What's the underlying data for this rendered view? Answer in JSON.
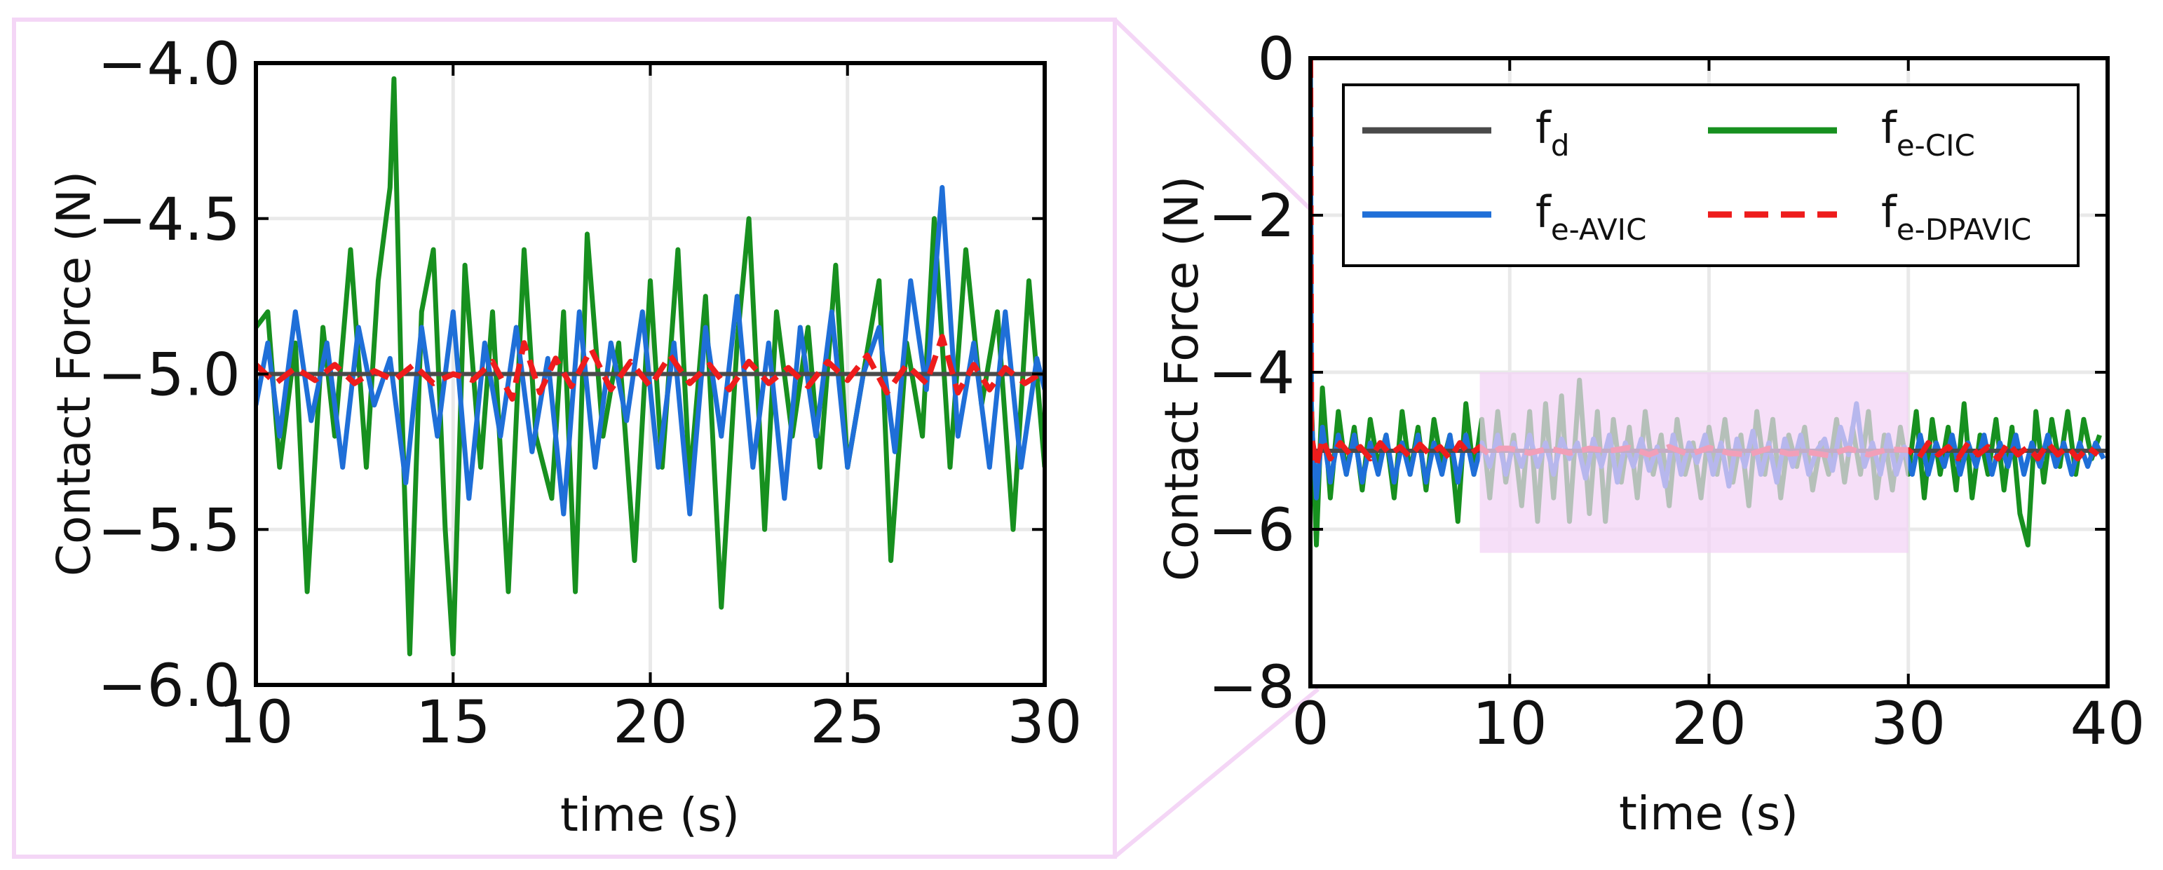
{
  "chart_data": [
    {
      "panel": "zoomed-view",
      "type": "line",
      "xlabel": "time (s)",
      "ylabel": "Contact Force (N)",
      "xlim": [
        10,
        30
      ],
      "ylim": [
        -6.0,
        -4.0
      ],
      "xticks": [
        "10",
        "15",
        "20",
        "25",
        "30"
      ],
      "yticks": [
        "−4.0",
        "−4.5",
        "−5.0",
        "−5.5",
        "−6.0"
      ],
      "grid": true,
      "series": [
        {
          "name": "f_d",
          "style": "solid",
          "color": "#4a4a4a",
          "t": [
            10,
            30
          ],
          "values": [
            -5.0,
            -5.0
          ]
        },
        {
          "name": "f_e-CIC",
          "style": "solid",
          "color": "#17901f",
          "t": [
            10.0,
            10.3,
            10.6,
            11.0,
            11.3,
            11.7,
            12.0,
            12.4,
            12.8,
            13.1,
            13.4,
            13.5,
            13.7,
            13.9,
            14.2,
            14.5,
            14.8,
            15.0,
            15.3,
            15.7,
            16.0,
            16.4,
            16.8,
            17.1,
            17.5,
            17.8,
            18.1,
            18.4,
            18.8,
            19.2,
            19.6,
            20.0,
            20.3,
            20.7,
            21.0,
            21.4,
            21.8,
            22.2,
            22.5,
            22.9,
            23.2,
            23.6,
            24.0,
            24.3,
            24.7,
            25.0,
            25.4,
            25.8,
            26.1,
            26.5,
            26.9,
            27.2,
            27.6,
            28.0,
            28.4,
            28.8,
            29.2,
            29.6,
            30.0
          ],
          "values": [
            -4.85,
            -4.8,
            -5.3,
            -4.9,
            -5.7,
            -4.85,
            -5.2,
            -4.6,
            -5.3,
            -4.7,
            -4.4,
            -4.05,
            -5.1,
            -5.9,
            -4.8,
            -4.6,
            -5.5,
            -5.9,
            -4.65,
            -5.3,
            -4.8,
            -5.7,
            -4.6,
            -5.2,
            -5.4,
            -4.8,
            -5.7,
            -4.55,
            -5.2,
            -4.9,
            -5.6,
            -4.7,
            -5.3,
            -4.6,
            -5.35,
            -4.75,
            -5.75,
            -4.9,
            -4.5,
            -5.5,
            -4.8,
            -5.2,
            -4.85,
            -5.3,
            -4.65,
            -5.3,
            -5.0,
            -4.7,
            -5.6,
            -4.9,
            -5.2,
            -4.5,
            -5.3,
            -4.6,
            -5.1,
            -4.8,
            -5.5,
            -4.7,
            -5.3
          ]
        },
        {
          "name": "f_e-AVIC",
          "style": "solid",
          "color": "#1f6fd8",
          "t": [
            10.0,
            10.3,
            10.6,
            11.0,
            11.4,
            11.8,
            12.2,
            12.6,
            13.0,
            13.4,
            13.8,
            14.2,
            14.6,
            15.0,
            15.4,
            15.8,
            16.2,
            16.6,
            17.0,
            17.4,
            17.8,
            18.2,
            18.6,
            19.0,
            19.4,
            19.8,
            20.2,
            20.6,
            21.0,
            21.4,
            21.8,
            22.2,
            22.6,
            23.0,
            23.4,
            23.8,
            24.2,
            24.6,
            25.0,
            25.4,
            25.8,
            26.2,
            26.6,
            27.0,
            27.4,
            27.8,
            28.2,
            28.6,
            29.0,
            29.4,
            29.8,
            30.0
          ],
          "values": [
            -5.1,
            -4.9,
            -5.2,
            -4.8,
            -5.15,
            -4.9,
            -5.3,
            -4.85,
            -5.1,
            -4.95,
            -5.35,
            -4.85,
            -5.2,
            -4.8,
            -5.4,
            -4.9,
            -5.2,
            -4.85,
            -5.25,
            -4.95,
            -5.45,
            -4.8,
            -5.3,
            -4.9,
            -5.15,
            -4.8,
            -5.3,
            -4.9,
            -5.45,
            -4.85,
            -5.2,
            -4.75,
            -5.3,
            -4.9,
            -5.4,
            -4.85,
            -5.2,
            -4.8,
            -5.3,
            -5.0,
            -4.85,
            -5.25,
            -4.7,
            -5.05,
            -4.4,
            -5.2,
            -4.9,
            -5.3,
            -4.8,
            -5.3,
            -4.95,
            -5.05
          ]
        },
        {
          "name": "f_e-DPAVIC",
          "style": "dashed",
          "color": "#ee1c1c",
          "t": [
            10.0,
            10.5,
            11.0,
            11.5,
            12.0,
            12.5,
            13.0,
            13.5,
            14.0,
            14.5,
            15.0,
            15.5,
            16.0,
            16.5,
            16.8,
            17.2,
            17.6,
            18.0,
            18.5,
            19.0,
            19.5,
            20.0,
            20.5,
            21.0,
            21.5,
            22.0,
            22.5,
            23.0,
            23.5,
            24.0,
            24.5,
            25.0,
            25.5,
            26.0,
            26.5,
            27.0,
            27.4,
            27.8,
            28.2,
            28.6,
            29.0,
            29.5,
            30.0
          ],
          "values": [
            -4.97,
            -5.03,
            -4.98,
            -5.02,
            -4.97,
            -5.03,
            -4.99,
            -5.02,
            -4.97,
            -5.03,
            -5.0,
            -5.02,
            -4.96,
            -5.08,
            -4.9,
            -5.06,
            -4.95,
            -5.04,
            -4.92,
            -5.05,
            -4.96,
            -5.04,
            -4.94,
            -5.03,
            -4.97,
            -5.05,
            -4.96,
            -5.03,
            -4.98,
            -5.04,
            -4.96,
            -5.02,
            -4.94,
            -5.06,
            -4.97,
            -5.03,
            -4.88,
            -5.06,
            -4.97,
            -5.05,
            -4.98,
            -5.03,
            -4.99
          ]
        }
      ]
    },
    {
      "panel": "full-view",
      "type": "line",
      "xlabel": "time (s)",
      "ylabel": "Contact Force (N)",
      "xlim": [
        0,
        40
      ],
      "ylim": [
        -8,
        0
      ],
      "xticks": [
        "0",
        "10",
        "20",
        "30",
        "40"
      ],
      "yticks": [
        "0",
        "−2",
        "−4",
        "−6",
        "−8"
      ],
      "grid": true,
      "highlight_region": {
        "x": [
          8.5,
          30
        ],
        "y": [
          -6.3,
          -4.0
        ]
      },
      "legend": {
        "placement": "top-right",
        "entries": [
          {
            "main": "f",
            "sub": "d",
            "color": "#4a4a4a",
            "style": "solid"
          },
          {
            "main": "f",
            "sub": "e-CIC",
            "color": "#17901f",
            "style": "solid"
          },
          {
            "main": "f",
            "sub": "e-AVIC",
            "color": "#1f6fd8",
            "style": "solid"
          },
          {
            "main": "f",
            "sub": "e-DPAVIC",
            "color": "#ee1c1c",
            "style": "dashed"
          }
        ]
      },
      "series": [
        {
          "name": "f_d",
          "style": "solid",
          "color": "#4a4a4a",
          "t": [
            0,
            40
          ],
          "values": [
            -5.0,
            -5.0
          ]
        },
        {
          "name": "f_e-CIC",
          "style": "solid",
          "color": "#17901f",
          "t": [
            0.0,
            0.05,
            0.3,
            0.6,
            1.0,
            1.4,
            1.8,
            2.2,
            2.6,
            3.0,
            3.4,
            3.8,
            4.2,
            4.6,
            5.0,
            5.4,
            5.8,
            6.2,
            6.6,
            7.0,
            7.4,
            7.8,
            8.2,
            8.6,
            9.0,
            9.4,
            9.8,
            10.2,
            10.6,
            11.0,
            11.4,
            11.8,
            12.2,
            12.6,
            13.0,
            13.5,
            14.0,
            14.4,
            14.8,
            15.2,
            15.6,
            16.0,
            16.4,
            16.8,
            17.2,
            17.6,
            18.0,
            18.4,
            18.8,
            19.2,
            19.6,
            20.0,
            20.4,
            20.8,
            21.2,
            21.6,
            22.0,
            22.4,
            22.8,
            23.2,
            23.6,
            24.0,
            24.4,
            24.8,
            25.2,
            25.6,
            26.0,
            26.4,
            26.8,
            27.2,
            27.6,
            28.0,
            28.4,
            28.8,
            29.2,
            29.6,
            30.0,
            30.4,
            30.8,
            31.2,
            31.6,
            32.0,
            32.4,
            32.8,
            33.2,
            33.6,
            34.0,
            34.4,
            34.8,
            35.2,
            35.6,
            36.0,
            36.4,
            36.8,
            37.2,
            37.6,
            38.0,
            38.4,
            38.8,
            39.2,
            39.6
          ],
          "values": [
            0.0,
            -4.4,
            -6.2,
            -4.2,
            -5.6,
            -4.5,
            -5.3,
            -4.7,
            -5.5,
            -4.6,
            -5.2,
            -4.8,
            -5.6,
            -4.5,
            -5.3,
            -4.7,
            -5.5,
            -4.6,
            -5.2,
            -4.8,
            -5.9,
            -4.4,
            -5.3,
            -4.6,
            -5.6,
            -4.5,
            -5.4,
            -4.8,
            -5.7,
            -4.5,
            -5.9,
            -4.4,
            -5.6,
            -4.3,
            -5.9,
            -4.1,
            -5.8,
            -4.5,
            -5.9,
            -4.6,
            -5.4,
            -4.7,
            -5.6,
            -4.5,
            -5.3,
            -4.8,
            -5.7,
            -4.6,
            -5.3,
            -4.9,
            -5.6,
            -4.7,
            -5.3,
            -4.6,
            -5.4,
            -4.8,
            -5.7,
            -4.5,
            -5.3,
            -4.6,
            -5.6,
            -4.8,
            -5.2,
            -4.7,
            -5.5,
            -4.9,
            -5.3,
            -4.6,
            -5.4,
            -4.7,
            -5.3,
            -4.5,
            -5.6,
            -4.8,
            -5.5,
            -4.7,
            -5.3,
            -4.5,
            -5.6,
            -4.6,
            -5.3,
            -4.7,
            -5.5,
            -4.4,
            -5.6,
            -4.8,
            -5.3,
            -4.6,
            -5.5,
            -4.7,
            -5.8,
            -6.2,
            -4.5,
            -5.4,
            -4.6,
            -5.2,
            -4.5,
            -5.3,
            -4.6,
            -5.1,
            -4.8
          ]
        },
        {
          "name": "f_e-AVIC",
          "style": "solid",
          "color": "#1f6fd8",
          "t": [
            0.0,
            0.05,
            0.3,
            0.6,
            1.0,
            1.4,
            1.8,
            2.2,
            2.6,
            3.0,
            3.4,
            3.8,
            4.2,
            4.6,
            5.0,
            5.4,
            5.8,
            6.2,
            6.6,
            7.0,
            7.4,
            7.8,
            8.2,
            8.6,
            9.0,
            9.4,
            9.8,
            10.2,
            10.6,
            11.0,
            11.4,
            11.8,
            12.2,
            12.6,
            13.0,
            13.4,
            13.8,
            14.2,
            14.6,
            15.0,
            15.4,
            15.8,
            16.2,
            16.6,
            17.0,
            17.4,
            17.8,
            18.2,
            18.6,
            19.0,
            19.4,
            19.8,
            20.2,
            20.6,
            21.0,
            21.4,
            21.8,
            22.2,
            22.6,
            23.0,
            23.4,
            23.8,
            24.2,
            24.6,
            25.0,
            25.4,
            25.8,
            26.2,
            26.6,
            27.0,
            27.4,
            27.8,
            28.2,
            28.6,
            29.0,
            29.4,
            29.8,
            30.2,
            30.6,
            31.0,
            31.4,
            31.8,
            32.2,
            32.6,
            33.0,
            33.4,
            33.8,
            34.2,
            34.6,
            35.0,
            35.4,
            35.8,
            36.2,
            36.6,
            37.0,
            37.4,
            37.8,
            38.2,
            38.6,
            39.0,
            39.4,
            39.8
          ],
          "values": [
            0.0,
            -4.6,
            -5.6,
            -4.7,
            -5.4,
            -4.8,
            -5.3,
            -4.8,
            -5.4,
            -4.9,
            -5.3,
            -4.8,
            -5.4,
            -4.9,
            -5.3,
            -4.8,
            -5.4,
            -4.9,
            -5.3,
            -4.8,
            -5.4,
            -4.8,
            -5.3,
            -4.9,
            -5.2,
            -4.8,
            -5.3,
            -4.9,
            -5.2,
            -4.8,
            -5.2,
            -4.9,
            -5.3,
            -4.85,
            -5.1,
            -4.9,
            -5.35,
            -4.85,
            -5.2,
            -4.8,
            -5.4,
            -4.9,
            -5.2,
            -4.85,
            -5.25,
            -4.95,
            -5.45,
            -4.8,
            -5.3,
            -4.9,
            -5.15,
            -4.8,
            -5.3,
            -4.9,
            -5.45,
            -4.85,
            -5.2,
            -4.75,
            -5.3,
            -4.9,
            -5.4,
            -4.85,
            -5.2,
            -4.8,
            -5.3,
            -5.0,
            -4.85,
            -5.25,
            -4.7,
            -5.05,
            -4.4,
            -5.2,
            -4.9,
            -5.3,
            -4.8,
            -5.3,
            -4.95,
            -5.3,
            -4.8,
            -5.3,
            -4.9,
            -5.2,
            -4.8,
            -5.3,
            -4.9,
            -5.2,
            -4.8,
            -5.3,
            -4.9,
            -5.2,
            -4.8,
            -5.3,
            -4.9,
            -5.2,
            -4.8,
            -5.2,
            -4.9,
            -5.3,
            -4.9,
            -5.2,
            -4.9,
            -5.1
          ]
        },
        {
          "name": "f_e-DPAVIC",
          "style": "dashed",
          "color": "#ee1c1c",
          "t": [
            0.0,
            0.05,
            0.3,
            0.6,
            1.0,
            1.5,
            2.0,
            2.5,
            3.0,
            3.5,
            4.0,
            4.5,
            5.0,
            5.5,
            6.0,
            6.5,
            7.0,
            7.5,
            8.0,
            8.5,
            9.0,
            9.5,
            10.0,
            11.0,
            12.0,
            13.0,
            14.0,
            15.0,
            16.0,
            17.0,
            18.0,
            19.0,
            20.0,
            21.0,
            22.0,
            23.0,
            24.0,
            25.0,
            26.0,
            27.0,
            28.0,
            29.0,
            30.0,
            30.5,
            31.0,
            31.5,
            32.0,
            32.5,
            33.0,
            33.5,
            34.0,
            34.5,
            35.0,
            35.5,
            36.0,
            36.5,
            37.0,
            37.5,
            38.0,
            38.5,
            39.0,
            39.5
          ],
          "values": [
            0.0,
            -4.8,
            -5.2,
            -4.85,
            -5.1,
            -4.9,
            -5.05,
            -4.95,
            -5.1,
            -4.9,
            -5.05,
            -4.95,
            -5.08,
            -4.92,
            -5.05,
            -4.95,
            -5.1,
            -4.9,
            -5.05,
            -4.95,
            -5.05,
            -4.97,
            -4.97,
            -5.03,
            -4.97,
            -5.03,
            -4.97,
            -5.0,
            -4.96,
            -5.05,
            -4.95,
            -5.05,
            -4.96,
            -5.03,
            -5.05,
            -4.97,
            -5.04,
            -5.02,
            -5.06,
            -4.97,
            -5.05,
            -4.98,
            -4.99,
            -5.1,
            -4.9,
            -5.05,
            -4.95,
            -5.1,
            -4.9,
            -5.05,
            -4.95,
            -5.1,
            -4.9,
            -5.05,
            -4.95,
            -5.1,
            -4.9,
            -5.05,
            -4.95,
            -5.1,
            -4.95,
            -5.05
          ]
        }
      ]
    }
  ]
}
